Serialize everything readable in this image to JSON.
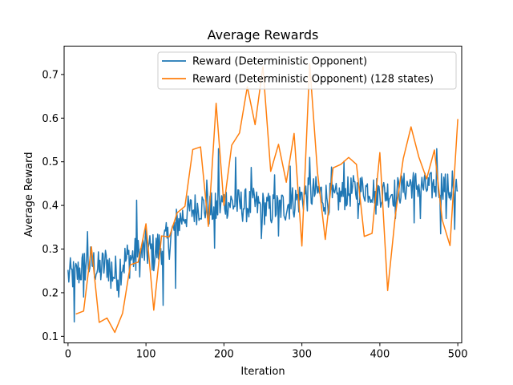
{
  "chart_data": {
    "type": "line",
    "title": "Average Rewards",
    "xlabel": "Iteration",
    "ylabel": "Average Reward",
    "xlim": [
      -5,
      505
    ],
    "ylim": [
      0.085,
      0.765
    ],
    "xticks": [
      0,
      100,
      200,
      300,
      400,
      500
    ],
    "yticks": [
      0.1,
      0.2,
      0.3,
      0.4,
      0.5,
      0.6,
      0.7
    ],
    "legend_position": "top-right",
    "grid": false,
    "series": [
      {
        "name": "Reward (Deterministic Opponent)",
        "color": "#1f77b4",
        "x_start": 0,
        "x_step": 1,
        "anchors": [
          [
            0,
            0.24
          ],
          [
            10,
            0.24
          ],
          [
            20,
            0.26
          ],
          [
            30,
            0.27
          ],
          [
            40,
            0.25
          ],
          [
            50,
            0.27
          ],
          [
            60,
            0.24
          ],
          [
            70,
            0.27
          ],
          [
            80,
            0.28
          ],
          [
            90,
            0.28
          ],
          [
            100,
            0.3
          ],
          [
            110,
            0.29
          ],
          [
            120,
            0.31
          ],
          [
            130,
            0.32
          ],
          [
            140,
            0.36
          ],
          [
            150,
            0.38
          ],
          [
            160,
            0.39
          ],
          [
            170,
            0.4
          ],
          [
            180,
            0.39
          ],
          [
            190,
            0.39
          ],
          [
            200,
            0.41
          ],
          [
            220,
            0.4
          ],
          [
            240,
            0.4
          ],
          [
            260,
            0.39
          ],
          [
            280,
            0.4
          ],
          [
            300,
            0.42
          ],
          [
            320,
            0.43
          ],
          [
            340,
            0.41
          ],
          [
            360,
            0.43
          ],
          [
            380,
            0.44
          ],
          [
            400,
            0.43
          ],
          [
            420,
            0.43
          ],
          [
            440,
            0.45
          ],
          [
            460,
            0.44
          ],
          [
            480,
            0.45
          ],
          [
            500,
            0.42
          ]
        ],
        "noise": [
          [
            0,
            0.04
          ],
          [
            100,
            0.05
          ],
          [
            150,
            0.04
          ],
          [
            200,
            0.04
          ],
          [
            300,
            0.04
          ],
          [
            400,
            0.035
          ],
          [
            500,
            0.035
          ]
        ],
        "spikes": [
          [
            8,
            0.133
          ],
          [
            20,
            0.19
          ],
          [
            25,
            0.34
          ],
          [
            55,
            0.21
          ],
          [
            65,
            0.19
          ],
          [
            88,
            0.412
          ],
          [
            122,
            0.171
          ],
          [
            138,
            0.21
          ],
          [
            178,
            0.458
          ],
          [
            188,
            0.302
          ],
          [
            193,
            0.53
          ],
          [
            215,
            0.51
          ],
          [
            235,
            0.487
          ],
          [
            248,
            0.324
          ],
          [
            265,
            0.47
          ],
          [
            270,
            0.33
          ],
          [
            285,
            0.49
          ],
          [
            310,
            0.51
          ],
          [
            330,
            0.38
          ],
          [
            338,
            0.488
          ],
          [
            354,
            0.501
          ],
          [
            372,
            0.37
          ],
          [
            395,
            0.38
          ],
          [
            420,
            0.37
          ],
          [
            444,
            0.36
          ],
          [
            452,
            0.37
          ],
          [
            473,
            0.53
          ],
          [
            478,
            0.335
          ],
          [
            485,
            0.37
          ],
          [
            493,
            0.479
          ],
          [
            496,
            0.345
          ],
          [
            498,
            0.46
          ]
        ]
      },
      {
        "name": "Reward (Deterministic Opponent) (128 states)",
        "color": "#ff7f0e",
        "x": [
          10,
          20,
          30,
          40,
          50,
          60,
          70,
          80,
          90,
          100,
          110,
          120,
          130,
          140,
          150,
          160,
          170,
          180,
          190,
          200,
          210,
          220,
          230,
          240,
          250,
          260,
          270,
          280,
          290,
          300,
          310,
          320,
          330,
          340,
          350,
          360,
          370,
          380,
          390,
          400,
          410,
          420,
          430,
          440,
          450,
          460,
          470,
          480,
          490,
          500
        ],
        "values": [
          0.151,
          0.158,
          0.305,
          0.132,
          0.142,
          0.109,
          0.153,
          0.264,
          0.27,
          0.358,
          0.16,
          0.33,
          0.328,
          0.383,
          0.398,
          0.528,
          0.534,
          0.352,
          0.634,
          0.4,
          0.538,
          0.566,
          0.672,
          0.585,
          0.718,
          0.478,
          0.54,
          0.453,
          0.565,
          0.307,
          0.725,
          0.476,
          0.322,
          0.486,
          0.494,
          0.51,
          0.494,
          0.329,
          0.336,
          0.521,
          0.205,
          0.379,
          0.507,
          0.58,
          0.511,
          0.461,
          0.527,
          0.367,
          0.308,
          0.598
        ]
      }
    ]
  }
}
